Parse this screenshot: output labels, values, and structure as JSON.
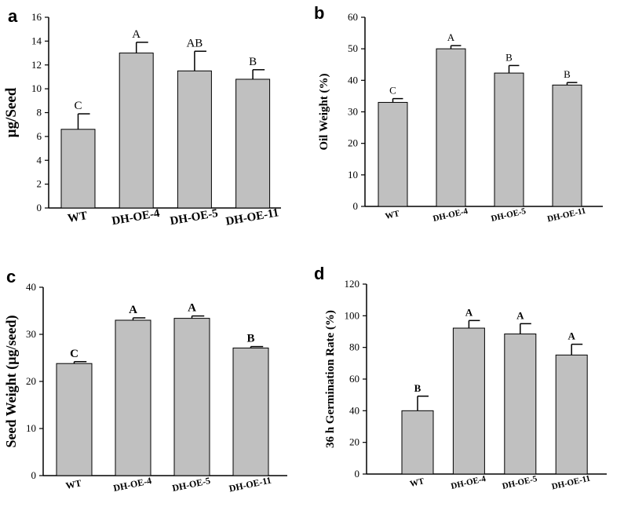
{
  "chart_data": [
    {
      "panel": "a",
      "type": "bar",
      "ylabel": "µg/Seed",
      "categories": [
        "WT",
        "DH-OE-4",
        "DH-OE-5",
        "DH-OE-11"
      ],
      "values": [
        6.6,
        13.0,
        11.5,
        10.8
      ],
      "errors": [
        1.3,
        0.9,
        1.65,
        0.8
      ],
      "sig_labels": [
        "C",
        "A",
        "AB",
        "B"
      ],
      "ylim": [
        0,
        16
      ],
      "yticks": [
        0,
        2,
        4,
        6,
        8,
        10,
        12,
        14,
        16
      ],
      "bar_color": "#c0c0c0"
    },
    {
      "panel": "b",
      "type": "bar",
      "ylabel": "Oil Weight (%)",
      "categories": [
        "WT",
        "DH-OE-4",
        "DH-OE-5",
        "DH-OE-11"
      ],
      "values": [
        33,
        50,
        42.3,
        38.5
      ],
      "errors": [
        1.2,
        1.0,
        2.4,
        0.8
      ],
      "sig_labels": [
        "C",
        "A",
        "B",
        "B"
      ],
      "ylim": [
        0,
        60
      ],
      "yticks": [
        0,
        10,
        20,
        30,
        40,
        50,
        60
      ],
      "bar_color": "#c0c0c0"
    },
    {
      "panel": "c",
      "type": "bar",
      "ylabel": "Seed Weight (µg/seed)",
      "categories": [
        "WT",
        "DH-OE-4",
        "DH-OE-5",
        "DH-OE-11"
      ],
      "values": [
        23.8,
        33,
        33.4,
        27.1
      ],
      "errors": [
        0.4,
        0.5,
        0.5,
        0.3
      ],
      "sig_labels": [
        "C",
        "A",
        "A",
        "B"
      ],
      "ylim": [
        0,
        40
      ],
      "yticks": [
        0,
        10,
        20,
        30,
        40
      ],
      "bar_color": "#c0c0c0"
    },
    {
      "panel": "d",
      "type": "bar",
      "ylabel": "36 h Germination Rate (%)",
      "categories": [
        "WT",
        "DH-OE-4",
        "DH-OE-5",
        "DH-OE-11"
      ],
      "values": [
        40,
        92.2,
        88.5,
        75.2
      ],
      "errors": [
        9.2,
        4.8,
        6.5,
        6.8
      ],
      "sig_labels": [
        "B",
        "A",
        "A",
        "A"
      ],
      "ylim": [
        0,
        120
      ],
      "yticks": [
        0,
        20,
        40,
        60,
        80,
        100,
        120
      ],
      "bar_color": "#c0c0c0"
    }
  ]
}
